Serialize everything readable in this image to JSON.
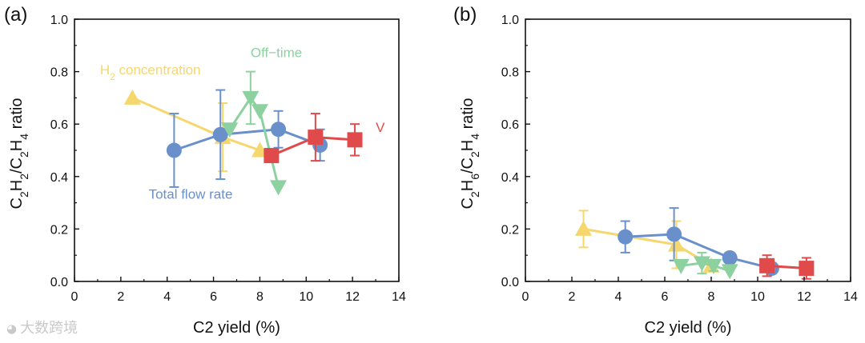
{
  "figure": {
    "watermark_text": "大数跨境",
    "watermark_icon": "chat-bubble-logo-icon"
  },
  "chart_data": [
    {
      "type": "scatter",
      "panel_label": "(a)",
      "title": "",
      "xlabel": "C2 yield (%)",
      "ylabel": [
        "C",
        "2",
        "H",
        "2",
        "/C",
        "2",
        "H",
        "4",
        " ratio"
      ],
      "xlim": [
        0,
        14
      ],
      "ylim": [
        0.0,
        1.0
      ],
      "xticks": [
        "0",
        "2",
        "4",
        "6",
        "8",
        "10",
        "12",
        "14"
      ],
      "yticks": [
        "0.0",
        "0.2",
        "0.4",
        "0.6",
        "0.8",
        "1.0"
      ],
      "grid": false,
      "series": [
        {
          "name": "H2 concentration",
          "label": [
            "H",
            "2",
            " concentration"
          ],
          "color": "#f5d76e",
          "marker": "triangle",
          "label_at": [
            1.1,
            0.79
          ],
          "points": [
            {
              "x": 2.5,
              "y": 0.7,
              "err": 0.0
            },
            {
              "x": 6.4,
              "y": 0.55,
              "err": 0.13
            },
            {
              "x": 8.0,
              "y": 0.5,
              "err": 0.0
            }
          ]
        },
        {
          "name": "Total flow rate",
          "label": [
            "Total flow rate"
          ],
          "color": "#6a90cc",
          "marker": "circle",
          "label_at": [
            3.2,
            0.315
          ],
          "points": [
            {
              "x": 4.3,
              "y": 0.5,
              "err": 0.14
            },
            {
              "x": 6.3,
              "y": 0.56,
              "err": 0.17
            },
            {
              "x": 8.8,
              "y": 0.58,
              "err": 0.07
            },
            {
              "x": 10.6,
              "y": 0.52,
              "err": 0.06
            }
          ]
        },
        {
          "name": "Off-time",
          "label": [
            "Off−time"
          ],
          "color": "#8dd1a1",
          "marker": "triangle-down",
          "label_at": [
            7.6,
            0.855
          ],
          "points": [
            {
              "x": 6.7,
              "y": 0.58,
              "err": 0.0
            },
            {
              "x": 7.6,
              "y": 0.7,
              "err": 0.1
            },
            {
              "x": 8.0,
              "y": 0.65,
              "err": 0.0
            },
            {
              "x": 8.8,
              "y": 0.36,
              "err": 0.0
            }
          ]
        },
        {
          "name": "V",
          "label": [
            "V"
          ],
          "color": "#e04a4a",
          "marker": "square",
          "label_at": [
            13.0,
            0.57
          ],
          "points": [
            {
              "x": 8.5,
              "y": 0.48,
              "err": 0.0
            },
            {
              "x": 10.4,
              "y": 0.55,
              "err": 0.09
            },
            {
              "x": 12.1,
              "y": 0.54,
              "err": 0.06
            }
          ]
        }
      ]
    },
    {
      "type": "scatter",
      "panel_label": "(b)",
      "title": "",
      "xlabel": "C2 yield (%)",
      "ylabel": [
        "C",
        "2",
        "H",
        "6",
        "/C",
        "2",
        "H",
        "4",
        " ratio"
      ],
      "xlim": [
        0,
        14
      ],
      "ylim": [
        0.0,
        1.0
      ],
      "xticks": [
        "0",
        "2",
        "4",
        "6",
        "8",
        "10",
        "12",
        "14"
      ],
      "yticks": [
        "0.0",
        "0.2",
        "0.4",
        "0.6",
        "0.8",
        "1.0"
      ],
      "grid": false,
      "series": [
        {
          "name": "H2 concentration",
          "color": "#f5d76e",
          "marker": "triangle",
          "points": [
            {
              "x": 2.5,
              "y": 0.2,
              "err": 0.07
            },
            {
              "x": 6.5,
              "y": 0.14,
              "err": 0.09
            },
            {
              "x": 8.0,
              "y": 0.06,
              "err": 0.02
            }
          ]
        },
        {
          "name": "Total flow rate",
          "color": "#6a90cc",
          "marker": "circle",
          "points": [
            {
              "x": 4.3,
              "y": 0.17,
              "err": 0.06
            },
            {
              "x": 6.4,
              "y": 0.18,
              "err": 0.1
            },
            {
              "x": 8.8,
              "y": 0.09,
              "err": 0.02
            },
            {
              "x": 10.6,
              "y": 0.05,
              "err": 0.02
            }
          ]
        },
        {
          "name": "Off-time",
          "color": "#8dd1a1",
          "marker": "triangle-down",
          "points": [
            {
              "x": 6.7,
              "y": 0.06,
              "err": 0.0
            },
            {
              "x": 7.6,
              "y": 0.07,
              "err": 0.04
            },
            {
              "x": 8.1,
              "y": 0.06,
              "err": 0.02
            },
            {
              "x": 8.8,
              "y": 0.04,
              "err": 0.0
            }
          ]
        },
        {
          "name": "V",
          "color": "#e04a4a",
          "marker": "square",
          "points": [
            {
              "x": 10.4,
              "y": 0.06,
              "err": 0.04
            },
            {
              "x": 12.1,
              "y": 0.05,
              "err": 0.04
            }
          ]
        }
      ]
    }
  ]
}
